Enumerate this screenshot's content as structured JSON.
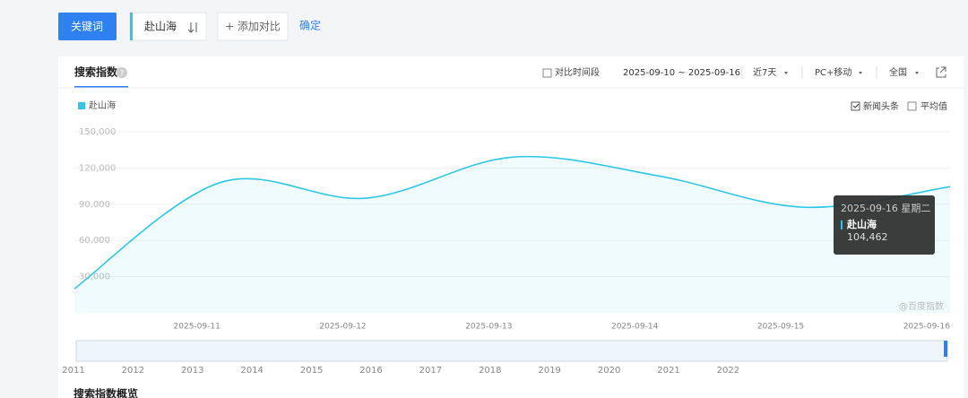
{
  "toolbar": {
    "keyword_tab": "关键词",
    "keyword": "赴山海",
    "add_compare": "+ 添加对比",
    "confirm": "确定"
  },
  "panel": {
    "tab": "搜索指数",
    "compare_period": "对比时间段",
    "date_range": "2025-09-10 ~ 2025-09-16",
    "period": "近7天",
    "device": "PC+移动",
    "region": "全国",
    "options": [
      "新闻头条",
      "平均值"
    ],
    "watermark": "@百度指数",
    "next_section": "搜索指数概览"
  },
  "chart_data": {
    "type": "line",
    "categories": [
      null,
      "2025-09-11",
      "2025-09-12",
      "2025-09-13",
      "2025-09-14",
      "2025-09-15",
      "2025-09-16"
    ],
    "series": [
      {
        "name": "赴山海",
        "color": "#2ec7e6",
        "values": [
          20000,
          108000,
          95000,
          129000,
          113500,
          87500,
          104462
        ],
        "value_labels": [
          null,
          null,
          null,
          null,
          null,
          null,
          "104,462"
        ]
      }
    ],
    "ylim": [
      0,
      150000
    ],
    "yticks": [
      {
        "value": 30000,
        "label": "30,000"
      },
      {
        "value": 60000,
        "label": "60,000"
      },
      {
        "value": 90000,
        "label": "90,000"
      },
      {
        "value": 120000,
        "label": "120,000"
      },
      {
        "value": 150000,
        "label": "150,000"
      }
    ],
    "grid": true,
    "tooltip": {
      "title": "2025-09-16 星期二"
    },
    "timeline_years": [
      2011,
      2012,
      2013,
      2014,
      2015,
      2016,
      2017,
      2018,
      2019,
      2020,
      2021,
      2022
    ]
  }
}
